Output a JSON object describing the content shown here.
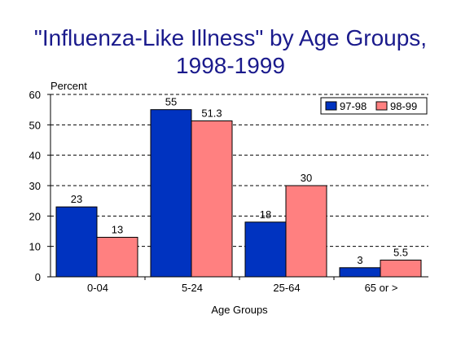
{
  "chart_data": {
    "type": "bar",
    "title_line1": "\"Influenza-Like Illness\" by Age Groups,",
    "title_line2": "1998-1999",
    "ylabel": "Percent",
    "xlabel": "Age Groups",
    "categories": [
      "0-04",
      "5-24",
      "25-64",
      "65 or >"
    ],
    "series": [
      {
        "name": "97-98",
        "color": "#0033c0",
        "values": [
          23,
          55,
          18,
          3
        ],
        "labels": [
          "23",
          "55",
          "18",
          "3"
        ]
      },
      {
        "name": "98-99",
        "color": "#ff8080",
        "values": [
          13,
          51.3,
          30,
          5.5
        ],
        "labels": [
          "13",
          "51.3",
          "30",
          "5.5"
        ]
      }
    ],
    "ylim": [
      0,
      60
    ],
    "yticks": [
      "0",
      "10",
      "20",
      "30",
      "40",
      "50",
      "60"
    ],
    "grid": true,
    "legend_position": "top-right"
  }
}
